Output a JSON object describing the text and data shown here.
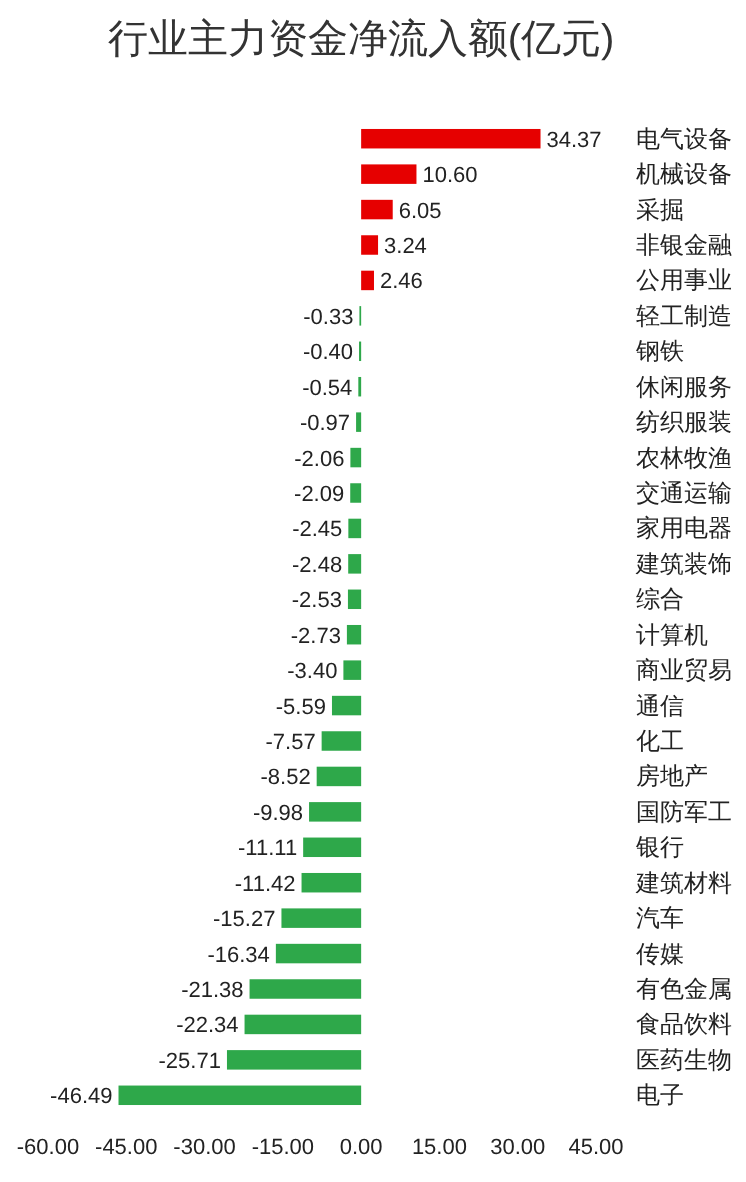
{
  "chart_data": {
    "type": "bar",
    "orientation": "horizontal",
    "title": "行业主力资金净流入额(亿元)",
    "categories": [
      "电气设备",
      "机械设备",
      "采掘",
      "非银金融",
      "公用事业",
      "轻工制造",
      "钢铁",
      "休闲服务",
      "纺织服装",
      "农林牧渔",
      "交通运输",
      "家用电器",
      "建筑装饰",
      "综合",
      "计算机",
      "商业贸易",
      "通信",
      "化工",
      "房地产",
      "国防军工",
      "银行",
      "建筑材料",
      "汽车",
      "传媒",
      "有色金属",
      "食品饮料",
      "医药生物",
      "电子"
    ],
    "values": [
      34.37,
      10.6,
      6.05,
      3.24,
      2.46,
      -0.33,
      -0.4,
      -0.54,
      -0.97,
      -2.06,
      -2.09,
      -2.45,
      -2.48,
      -2.53,
      -2.73,
      -3.4,
      -5.59,
      -7.57,
      -8.52,
      -9.98,
      -11.11,
      -11.42,
      -15.27,
      -16.34,
      -21.38,
      -22.34,
      -25.71,
      -46.49
    ],
    "value_labels": [
      "34.37",
      "10.60",
      "6.05",
      "3.24",
      "2.46",
      "-0.33",
      "-0.40",
      "-0.54",
      "-0.97",
      "-2.06",
      "-2.09",
      "-2.45",
      "-2.48",
      "-2.53",
      "-2.73",
      "-3.40",
      "-5.59",
      "-7.57",
      "-8.52",
      "-9.98",
      "-11.11",
      "-11.42",
      "-15.27",
      "-16.34",
      "-21.38",
      "-22.34",
      "-25.71",
      "-46.49"
    ],
    "colors": [
      "#e60000",
      "#e60000",
      "#e60000",
      "#e60000",
      "#e60000",
      "#2ea84a",
      "#2ea84a",
      "#2ea84a",
      "#2ea84a",
      "#2ea84a",
      "#2ea84a",
      "#2ea84a",
      "#2ea84a",
      "#2ea84a",
      "#2ea84a",
      "#2ea84a",
      "#2ea84a",
      "#2ea84a",
      "#2ea84a",
      "#2ea84a",
      "#2ea84a",
      "#2ea84a",
      "#2ea84a",
      "#2ea84a",
      "#2ea84a",
      "#2ea84a",
      "#2ea84a",
      "#2ea84a"
    ],
    "xlim": [
      -60,
      45
    ],
    "xticks": [
      {
        "value": -60,
        "label": "-60.00"
      },
      {
        "value": -45,
        "label": "-45.00"
      },
      {
        "value": -30,
        "label": "-30.00"
      },
      {
        "value": -15,
        "label": "-15.00"
      },
      {
        "value": 0,
        "label": "0.00"
      },
      {
        "value": 15,
        "label": "15.00"
      },
      {
        "value": 30,
        "label": "30.00"
      },
      {
        "value": 45,
        "label": "45.00"
      }
    ],
    "legend": false
  }
}
